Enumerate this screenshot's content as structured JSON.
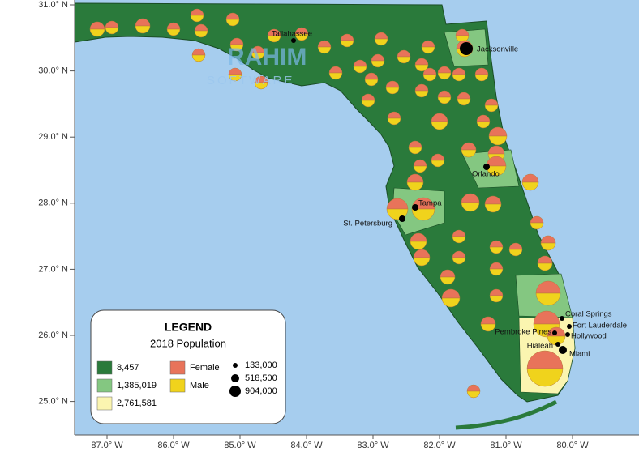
{
  "map": {
    "lat_labels": [
      "31.0° N",
      "30.0° N",
      "29.0° N",
      "28.0° N",
      "27.0° N",
      "26.0° N",
      "25.0° N"
    ],
    "lon_labels": [
      "87.0° W",
      "86.0° W",
      "85.0° W",
      "84.0° W",
      "83.0° W",
      "82.0° W",
      "81.0° W",
      "80.0° W"
    ],
    "cities": [
      "Tallahassee",
      "Jacksonville",
      "Orlando",
      "Tampa",
      "St. Petersburg",
      "Coral Springs",
      "Fort Lauderdale",
      "Pembroke Pines",
      "Hollywood",
      "Hialeah",
      "Miami"
    ],
    "watermark": [
      "RAHIM",
      "SOFTWARE"
    ],
    "legend": {
      "title": "LEGEND",
      "subtitle": "2018 Population",
      "fill_classes": [
        "8,457",
        "1,385,019",
        "2,761,581"
      ],
      "pie_parts": [
        "Female",
        "Male"
      ],
      "sizes": [
        "133,000",
        "518,500",
        "904,000"
      ]
    }
  }
}
